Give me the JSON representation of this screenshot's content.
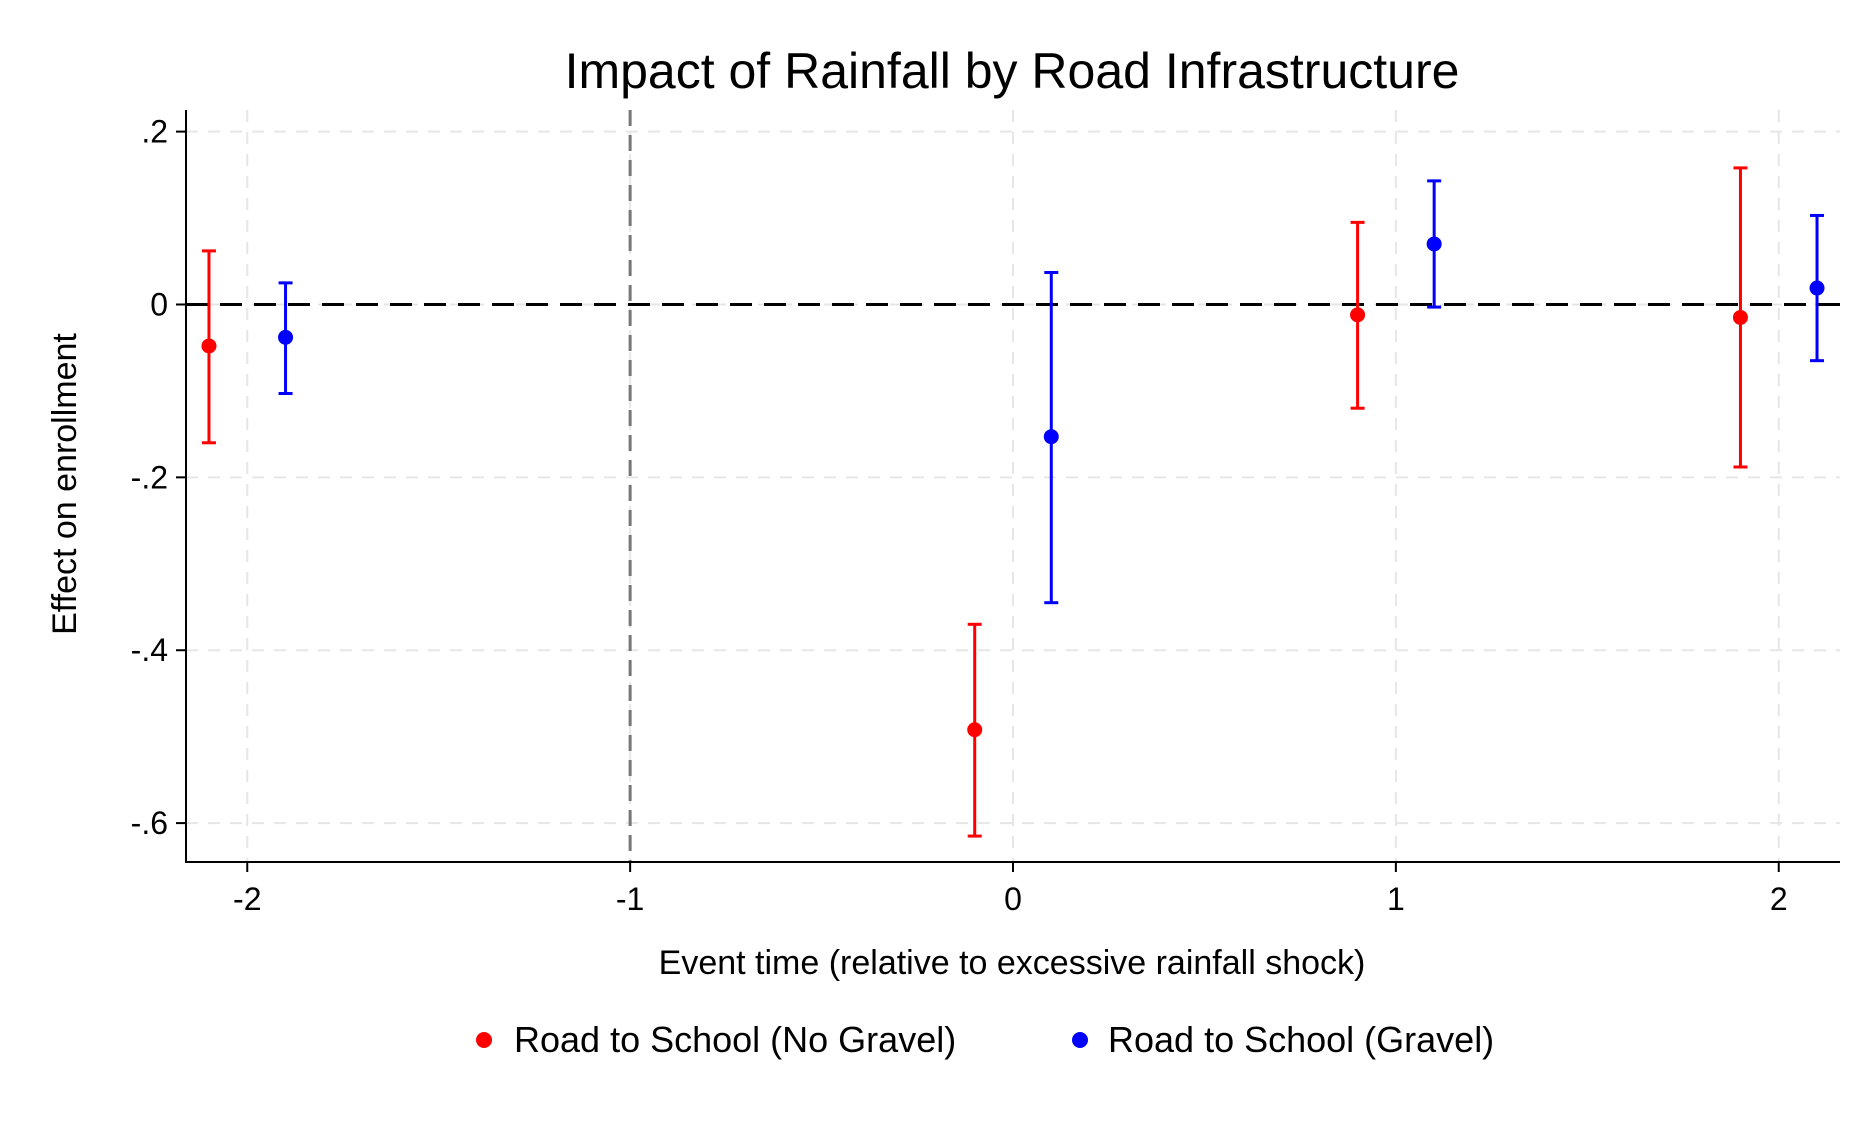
{
  "chart_data": {
    "type": "scatter",
    "title": "Impact of Rainfall by Road Infrastructure",
    "xlabel": "Event time (relative to excessive rainfall shock)",
    "ylabel": "Effect on enrollment",
    "xlim": [
      -2.16,
      2.16
    ],
    "ylim": [
      -0.645,
      0.225
    ],
    "x_ticks": [
      -2,
      -1,
      0,
      1,
      2
    ],
    "x_tick_labels": [
      "-2",
      "-1",
      "0",
      "1",
      "2"
    ],
    "y_ticks": [
      0.2,
      0,
      -0.2,
      -0.4,
      -0.6
    ],
    "y_tick_labels": [
      ".2",
      "0",
      "-.2",
      "-.4",
      "-.6"
    ],
    "grid": true,
    "reference_lines": {
      "y": 0,
      "x": -1
    },
    "legend_position": "bottom",
    "series": [
      {
        "name": "Road to School (No Gravel)",
        "color": "#ff0000",
        "points": [
          {
            "x": -2.1,
            "y": -0.048,
            "lo": -0.16,
            "hi": 0.062
          },
          {
            "x": -0.1,
            "y": -0.492,
            "lo": -0.615,
            "hi": -0.37
          },
          {
            "x": 0.9,
            "y": -0.012,
            "lo": -0.12,
            "hi": 0.095
          },
          {
            "x": 1.9,
            "y": -0.015,
            "lo": -0.188,
            "hi": 0.158
          }
        ]
      },
      {
        "name": "Road to School (Gravel)",
        "color": "#0000ff",
        "points": [
          {
            "x": -1.9,
            "y": -0.038,
            "lo": -0.103,
            "hi": 0.025
          },
          {
            "x": 0.1,
            "y": -0.153,
            "lo": -0.345,
            "hi": 0.037
          },
          {
            "x": 1.1,
            "y": 0.07,
            "lo": -0.003,
            "hi": 0.143
          },
          {
            "x": 2.1,
            "y": 0.019,
            "lo": -0.065,
            "hi": 0.103
          }
        ]
      }
    ]
  }
}
